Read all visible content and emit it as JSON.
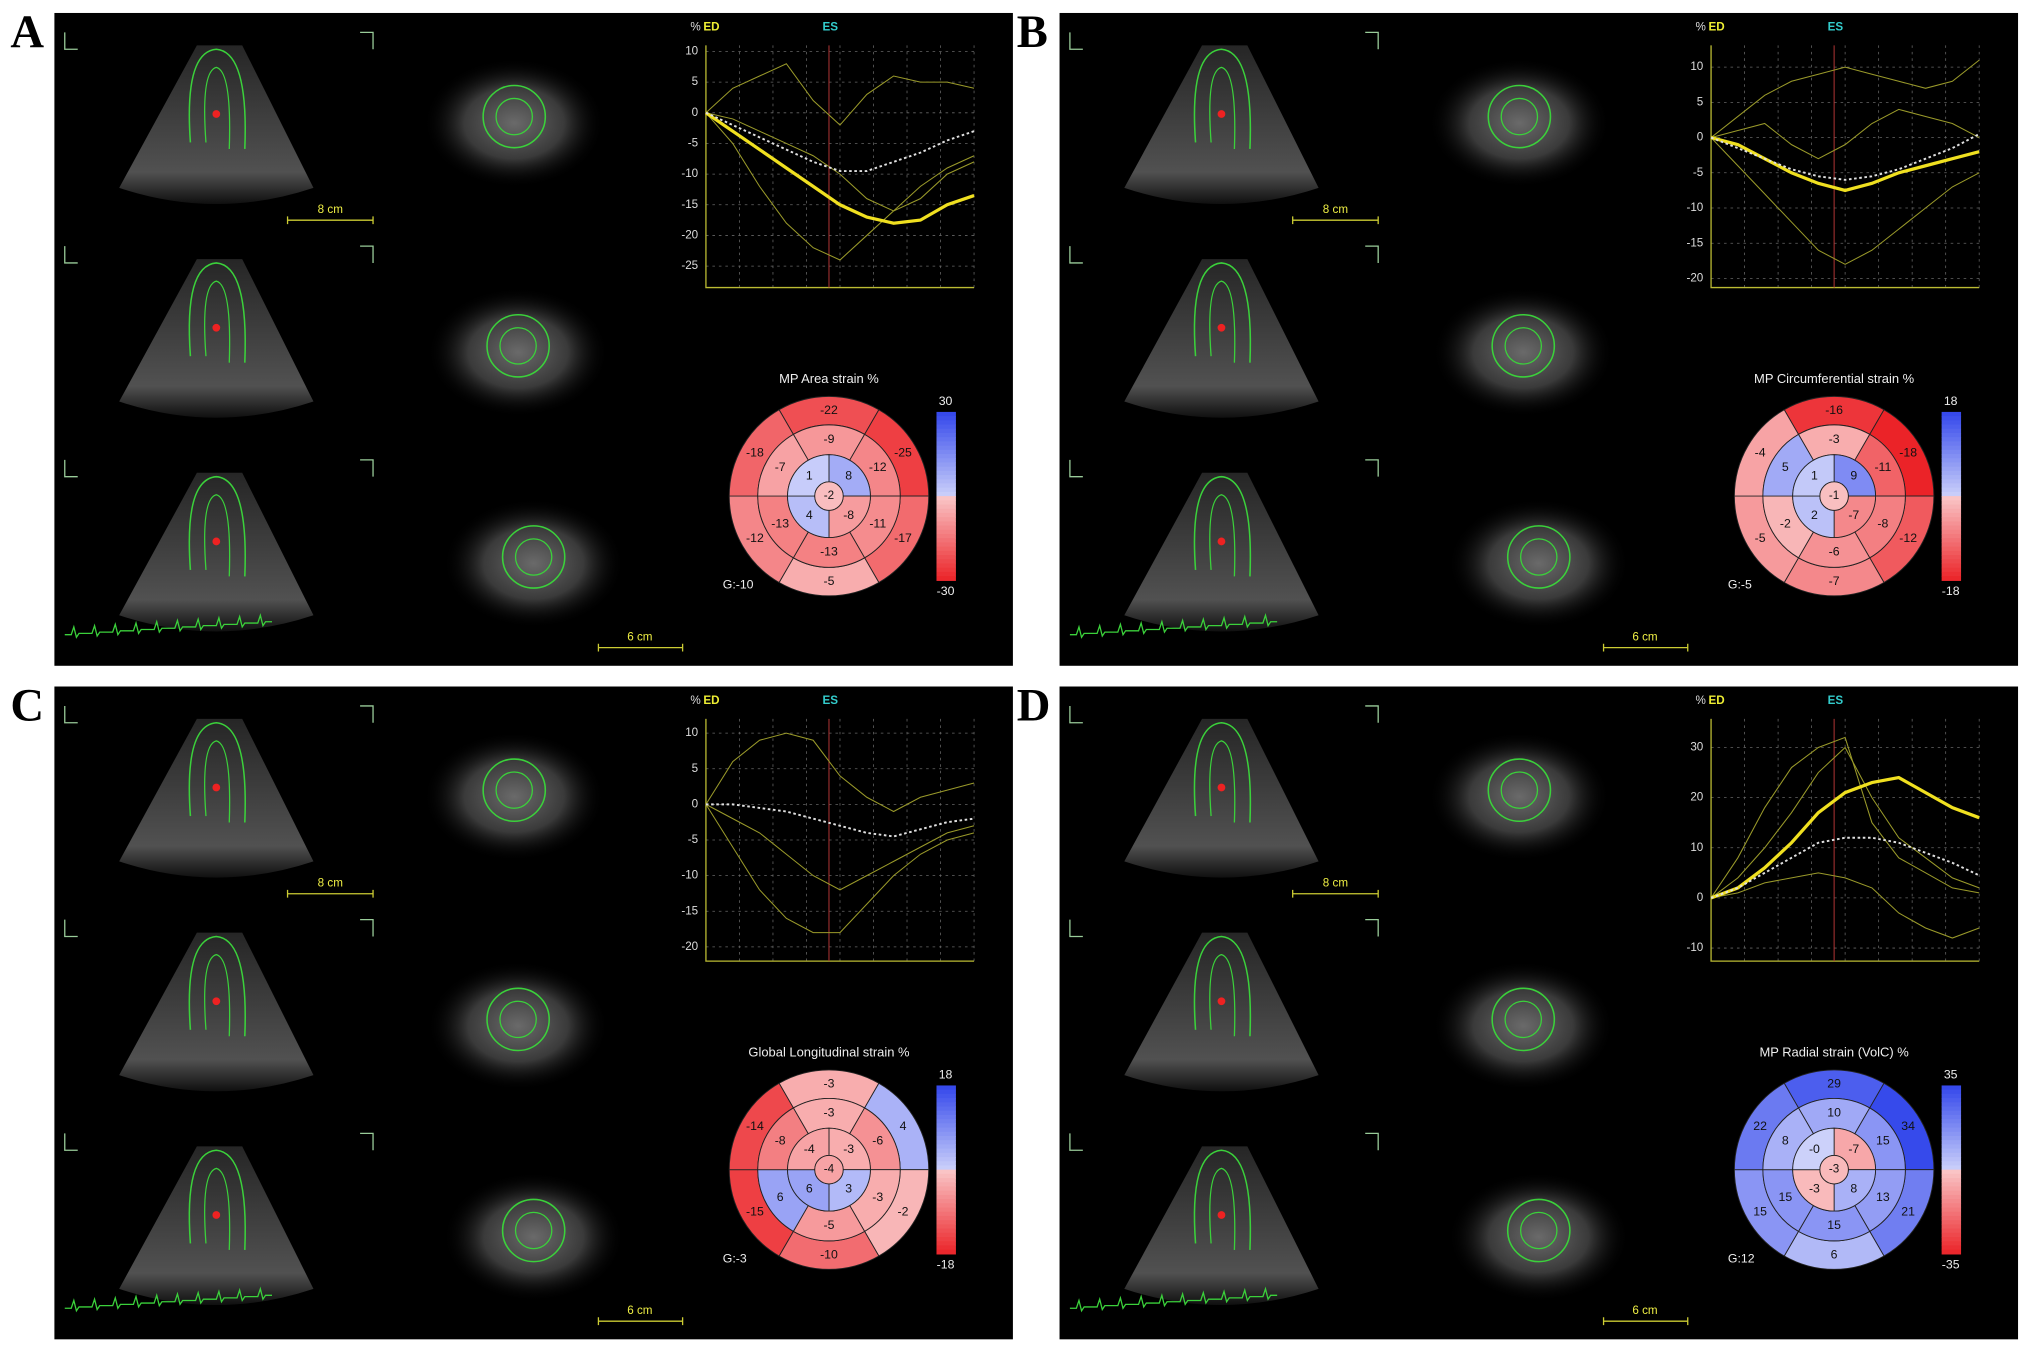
{
  "panels": [
    {
      "label": "A",
      "chart_data": {
        "type": "line",
        "y_unit": "%",
        "ed_label": "ED",
        "es_label": "ES",
        "ylim": [
          -28.5,
          11
        ],
        "yticks": [
          10,
          5,
          0,
          -5,
          -10,
          -15,
          -20,
          -25
        ],
        "grid": true,
        "series": [
          {
            "color": "#9a9a2a",
            "style": "thin",
            "values": [
              0,
              4,
              6,
              8,
              2,
              -2,
              3,
              6,
              5,
              5,
              4
            ]
          },
          {
            "color": "#9a9a2a",
            "style": "thin",
            "values": [
              0,
              -5,
              -12,
              -18,
              -22,
              -24,
              -20,
              -16,
              -12,
              -9,
              -7
            ]
          },
          {
            "color": "#9a9a2a",
            "style": "thin",
            "values": [
              0,
              -1,
              -3,
              -5,
              -7,
              -10,
              -14,
              -16,
              -14,
              -10,
              -8
            ]
          },
          {
            "color": "#f0e020",
            "style": "thick",
            "values": [
              0,
              -3,
              -6,
              -9,
              -12,
              -15,
              -17,
              -18,
              -17.5,
              -15,
              -13.5
            ]
          },
          {
            "color": "#e0e0e0",
            "style": "dotted",
            "values": [
              0,
              -2,
              -4,
              -6,
              -8,
              -9.5,
              -9.5,
              -8,
              -6.5,
              -4.5,
              -3
            ]
          }
        ]
      },
      "bullseye": {
        "title": "MP Area strain %",
        "basal": [
          -22,
          -25,
          -17,
          -5,
          -12,
          -18
        ],
        "mid": [
          -9,
          -12,
          -11,
          -13,
          -13,
          -7
        ],
        "apical": [
          8,
          -8,
          4,
          1
        ],
        "apex": -2,
        "scale_max": 30,
        "scale_min": -30,
        "global": {
          "value": -10,
          "label": "G:-10"
        }
      },
      "scale_bars": [
        "8 cm",
        "6 cm"
      ]
    },
    {
      "label": "B",
      "chart_data": {
        "type": "line",
        "y_unit": "%",
        "ed_label": "ED",
        "es_label": "ES",
        "ylim": [
          -21.3,
          13.1
        ],
        "yticks": [
          10,
          5,
          0,
          -5,
          -10,
          -15,
          -20
        ],
        "grid": true,
        "series": [
          {
            "color": "#9a9a2a",
            "style": "thin",
            "values": [
              0,
              3,
              6,
              8,
              9,
              10,
              9,
              8,
              7,
              8,
              11
            ]
          },
          {
            "color": "#9a9a2a",
            "style": "thin",
            "values": [
              0,
              -4,
              -8,
              -12,
              -16,
              -18,
              -16,
              -13,
              -10,
              -7,
              -5
            ]
          },
          {
            "color": "#9a9a2a",
            "style": "thin",
            "values": [
              0,
              1,
              2,
              -1,
              -3,
              -1,
              2,
              4,
              3,
              2,
              0
            ]
          },
          {
            "color": "#f0e020",
            "style": "thick",
            "values": [
              0,
              -1,
              -3,
              -5,
              -6.5,
              -7.5,
              -6.5,
              -5,
              -4,
              -3,
              -2
            ]
          },
          {
            "color": "#e0e0e0",
            "style": "dotted",
            "values": [
              0,
              -1.5,
              -3,
              -4.5,
              -5.5,
              -6,
              -5.5,
              -4.5,
              -3,
              -1.5,
              0.5
            ]
          }
        ]
      },
      "bullseye": {
        "title": "MP Circumferential strain %",
        "basal": [
          -16,
          -18,
          -12,
          -7,
          -5,
          -4
        ],
        "mid": [
          -3,
          -11,
          -8,
          -6,
          -2,
          5
        ],
        "apical": [
          9,
          -7,
          2,
          1
        ],
        "apex": -1,
        "scale_max": 18,
        "scale_min": -18,
        "global": {
          "value": -5,
          "label": "G:-5"
        }
      },
      "scale_bars": [
        "8 cm",
        "6 cm"
      ]
    },
    {
      "label": "C",
      "chart_data": {
        "type": "line",
        "y_unit": "%",
        "ed_label": "ED",
        "es_label": "ES",
        "ylim": [
          -22,
          12
        ],
        "yticks": [
          10,
          5,
          0,
          -5,
          -10,
          -15,
          -20
        ],
        "grid": true,
        "series": [
          {
            "color": "#9a9a2a",
            "style": "thin",
            "values": [
              0,
              6,
              9,
              10,
              9,
              4,
              1,
              -1,
              1,
              2,
              3
            ]
          },
          {
            "color": "#9a9a2a",
            "style": "thin",
            "values": [
              0,
              -6,
              -12,
              -16,
              -18,
              -18,
              -14,
              -10,
              -7,
              -5,
              -4
            ]
          },
          {
            "color": "#9a9a2a",
            "style": "thin",
            "values": [
              0,
              -2,
              -4,
              -7,
              -10,
              -12,
              -10,
              -8,
              -6,
              -4,
              -3
            ]
          },
          {
            "color": "#e0e0e0",
            "style": "dotted",
            "values": [
              0,
              0,
              -0.5,
              -1,
              -2,
              -3,
              -4,
              -4.5,
              -3.5,
              -2.5,
              -2
            ]
          }
        ]
      },
      "bullseye": {
        "title": "Global Longitudinal strain %",
        "basal": [
          -3,
          4,
          -2,
          -10,
          -15,
          -14
        ],
        "mid": [
          -3,
          -6,
          -3,
          -5,
          6,
          -8
        ],
        "apical": [
          -3,
          3,
          6,
          -4
        ],
        "apex": -4,
        "scale_max": 18,
        "scale_min": -18,
        "global": {
          "value": -3,
          "label": "G:-3"
        }
      },
      "scale_bars": [
        "8 cm",
        "6 cm"
      ]
    },
    {
      "label": "D",
      "chart_data": {
        "type": "line",
        "y_unit": "%",
        "ed_label": "ED",
        "es_label": "ES",
        "ylim": [
          -12.6,
          35.7
        ],
        "yticks": [
          30,
          20,
          10,
          0,
          -10
        ],
        "grid": true,
        "series": [
          {
            "color": "#9a9a2a",
            "style": "thin",
            "values": [
              0,
              8,
              18,
              26,
              30,
              32,
              15,
              8,
              5,
              2,
              1
            ]
          },
          {
            "color": "#9a9a2a",
            "style": "thin",
            "values": [
              0,
              4,
              10,
              17,
              25,
              30,
              20,
              12,
              8,
              4,
              2
            ]
          },
          {
            "color": "#9a9a2a",
            "style": "thin",
            "values": [
              0,
              1,
              3,
              4,
              5,
              4,
              2,
              -3,
              -6,
              -8,
              -6
            ]
          },
          {
            "color": "#f0e020",
            "style": "thick",
            "values": [
              0,
              2,
              6,
              11,
              17,
              21,
              23,
              24,
              21,
              18,
              16
            ]
          },
          {
            "color": "#e0e0e0",
            "style": "dotted",
            "values": [
              0,
              2,
              5,
              8,
              11,
              12,
              12,
              11,
              9,
              7,
              4.5
            ]
          }
        ]
      },
      "bullseye": {
        "title": "MP Radial strain (VolC) %",
        "basal": [
          29,
          34,
          21,
          6,
          15,
          22
        ],
        "mid": [
          10,
          15,
          13,
          15,
          15,
          8
        ],
        "apical": [
          -7,
          8,
          -3,
          0
        ],
        "apical_labels": [
          "-7",
          "8",
          "-3",
          "-0"
        ],
        "apex": -3,
        "scale_max": 35,
        "scale_min": -35,
        "global": {
          "value": 12,
          "label": "G:12"
        }
      },
      "scale_bars": [
        "8 cm",
        "6 cm"
      ]
    }
  ]
}
